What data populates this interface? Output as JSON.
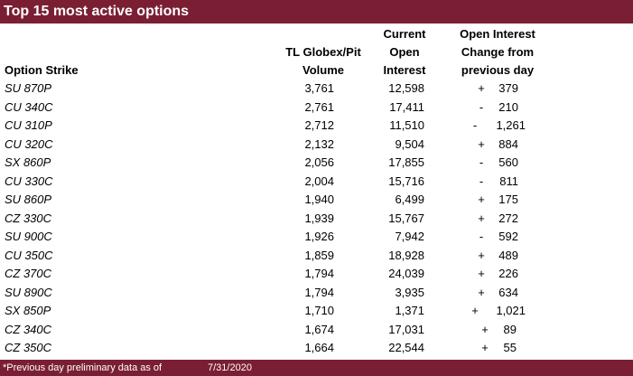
{
  "title": "Top 15 most active options",
  "headers": {
    "strike": "Option Strike",
    "volume": [
      "TL Globex/Pit",
      "Volume"
    ],
    "open_interest": [
      "Current",
      "Open",
      "Interest"
    ],
    "oi_change": [
      "Open Interest",
      "Change from",
      "previous day"
    ]
  },
  "rows": [
    {
      "strike": "SU 870P",
      "volume": "3,761",
      "oi": "12,598",
      "sign": "+",
      "change": "379"
    },
    {
      "strike": "CU 340C",
      "volume": "2,761",
      "oi": "17,411",
      "sign": "-",
      "change": "210"
    },
    {
      "strike": "CU 310P",
      "volume": "2,712",
      "oi": "11,510",
      "sign": "-",
      "change": "1,261"
    },
    {
      "strike": "CU 320C",
      "volume": "2,132",
      "oi": "9,504",
      "sign": "+",
      "change": "884"
    },
    {
      "strike": "SX 860P",
      "volume": "2,056",
      "oi": "17,855",
      "sign": "-",
      "change": "560"
    },
    {
      "strike": "CU 330C",
      "volume": "2,004",
      "oi": "15,716",
      "sign": "-",
      "change": "811"
    },
    {
      "strike": "SU 860P",
      "volume": "1,940",
      "oi": "6,499",
      "sign": "+",
      "change": "175"
    },
    {
      "strike": "CZ 330C",
      "volume": "1,939",
      "oi": "15,767",
      "sign": "+",
      "change": "272"
    },
    {
      "strike": "SU 900C",
      "volume": "1,926",
      "oi": "7,942",
      "sign": "-",
      "change": "592"
    },
    {
      "strike": "CU 350C",
      "volume": "1,859",
      "oi": "18,928",
      "sign": "+",
      "change": "489"
    },
    {
      "strike": "CZ 370C",
      "volume": "1,794",
      "oi": "24,039",
      "sign": "+",
      "change": "226"
    },
    {
      "strike": "SU 890C",
      "volume": "1,794",
      "oi": "3,935",
      "sign": "+",
      "change": "634"
    },
    {
      "strike": "SX 850P",
      "volume": "1,710",
      "oi": "1,371",
      "sign": "+",
      "change": "1,021"
    },
    {
      "strike": "CZ 340C",
      "volume": "1,674",
      "oi": "17,031",
      "sign": "+",
      "change": "89"
    },
    {
      "strike": "CZ 350C",
      "volume": "1,664",
      "oi": "22,544",
      "sign": "+",
      "change": "55"
    }
  ],
  "footer": {
    "note": "*Previous day preliminary data as of",
    "date": "7/31/2020"
  },
  "colors": {
    "bar": "#7a1f33",
    "bar_text": "#ffffff"
  }
}
